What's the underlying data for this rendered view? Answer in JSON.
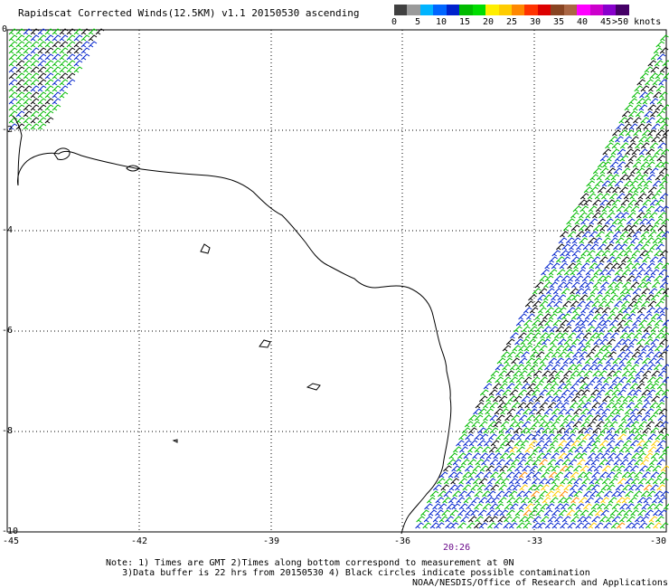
{
  "title": "Rapidscat Corrected Winds(12.5KM) v1.1 20150530 ascending",
  "scale": {
    "colors": [
      "#404040",
      "#9a9a9a",
      "#00b4ff",
      "#0066ff",
      "#0022cc",
      "#00bb00",
      "#00dd00",
      "#ffee00",
      "#ffcc00",
      "#ff8800",
      "#ff3300",
      "#dd0000",
      "#884422",
      "#aa6644",
      "#ff00ff",
      "#cc00cc",
      "#8800cc",
      "#440066"
    ],
    "ticks": [
      "0",
      "5",
      "10",
      "15",
      "20",
      "25",
      "30",
      "35",
      "40",
      "45",
      ">50 knots"
    ]
  },
  "axes": {
    "lat_labels": [
      "0",
      "-2",
      "-4",
      "-6",
      "-8",
      "-10"
    ],
    "lon_labels": [
      "-45",
      "-42",
      "-39",
      "-36",
      "-33",
      "-30"
    ]
  },
  "time_label": "20:26",
  "notes": [
    "Note: 1) Times are GMT 2)Times along bottom correspond to measurement at 0N",
    "3)Data buffer is 22 hrs from 20150530 4) Black circles indicate possible contamination"
  ],
  "credit": "NOAA/NESDIS/Office of Research and Applications"
}
